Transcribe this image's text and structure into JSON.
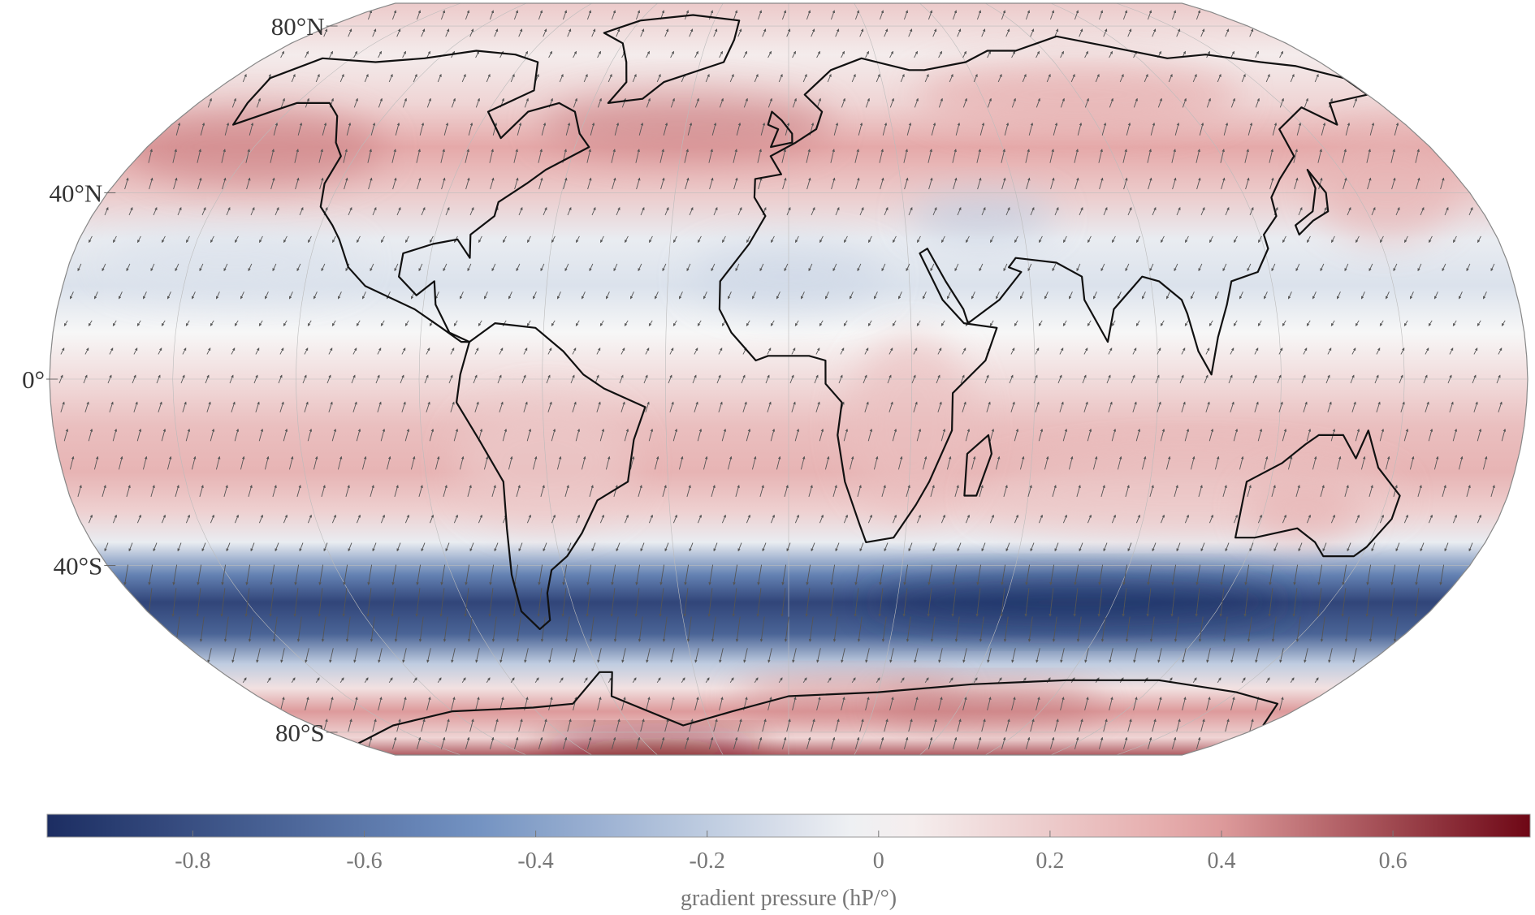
{
  "map": {
    "projection": "robinson",
    "latitude_labels": [
      {
        "text": "80°N",
        "lat": 80
      },
      {
        "text": "40°N",
        "lat": 40
      },
      {
        "text": "0°",
        "lat": 0
      },
      {
        "text": "40°S",
        "lat": -40
      },
      {
        "text": "80°S",
        "lat": -80
      }
    ],
    "overlay": "pressure-gradient arrows",
    "coastlines": true
  },
  "colorbar": {
    "title": "gradient pressure (hP/°)",
    "range": [
      -0.97,
      0.76
    ],
    "ticks": [
      {
        "value": -0.8,
        "label": "-0.8"
      },
      {
        "value": -0.6,
        "label": "-0.6"
      },
      {
        "value": -0.4,
        "label": "-0.4"
      },
      {
        "value": -0.2,
        "label": "-0.2"
      },
      {
        "value": 0,
        "label": "0"
      },
      {
        "value": 0.2,
        "label": "0.2"
      },
      {
        "value": 0.4,
        "label": "0.4"
      },
      {
        "value": 0.6,
        "label": "0.6"
      }
    ],
    "colors": {
      "negative_end": "#1c2d62",
      "negative_mid": "#6f8fc0",
      "zero": "#f7f7f7",
      "positive_mid": "#e3a2a2",
      "positive_end": "#6e0715"
    }
  },
  "field_bands": [
    {
      "lat": 90,
      "value": 0.2
    },
    {
      "lat": 72,
      "value": 0.05
    },
    {
      "lat": 60,
      "value": 0.15
    },
    {
      "lat": 50,
      "value": 0.35
    },
    {
      "lat": 40,
      "value": 0.2
    },
    {
      "lat": 30,
      "value": -0.05
    },
    {
      "lat": 20,
      "value": -0.1
    },
    {
      "lat": 10,
      "value": 0.0
    },
    {
      "lat": 0,
      "value": 0.12
    },
    {
      "lat": -10,
      "value": 0.25
    },
    {
      "lat": -20,
      "value": 0.3
    },
    {
      "lat": -28,
      "value": 0.18
    },
    {
      "lat": -35,
      "value": -0.05
    },
    {
      "lat": -42,
      "value": -0.55
    },
    {
      "lat": -48,
      "value": -0.85
    },
    {
      "lat": -55,
      "value": -0.7
    },
    {
      "lat": -62,
      "value": -0.2
    },
    {
      "lat": -68,
      "value": 0.1
    },
    {
      "lat": -74,
      "value": 0.4
    },
    {
      "lat": -82,
      "value": 0.15
    },
    {
      "lat": -90,
      "value": 0.55
    }
  ]
}
